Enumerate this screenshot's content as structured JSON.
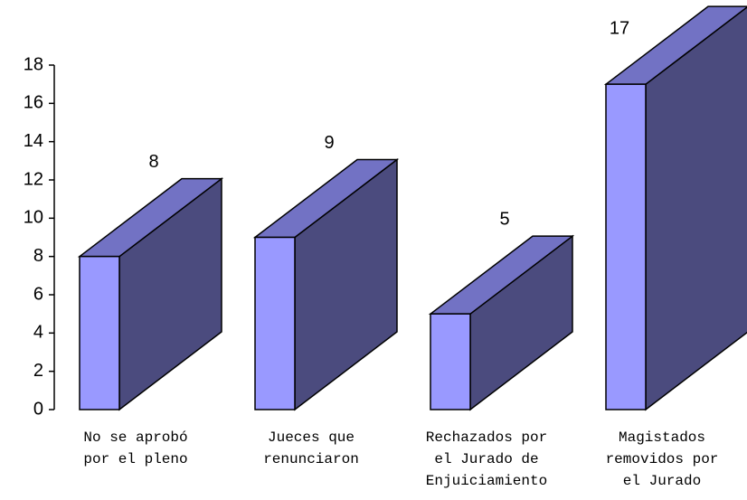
{
  "chart_data": {
    "type": "bar3d",
    "categories": [
      "No se aprobó\npor el pleno",
      "Jueces que\nrenunciaron",
      "Rechazados por\nel Jurado de\nEnjuiciamiento",
      "Magistados\nremovidos por\nel Jurado"
    ],
    "values": [
      8,
      9,
      5,
      17
    ],
    "colors": {
      "front": "#9999ff",
      "side": "#4b4b7e",
      "top": "#7272c4"
    },
    "ylim": [
      0,
      18
    ],
    "yticks": [
      0,
      2,
      4,
      6,
      8,
      10,
      12,
      14,
      16,
      18
    ]
  }
}
